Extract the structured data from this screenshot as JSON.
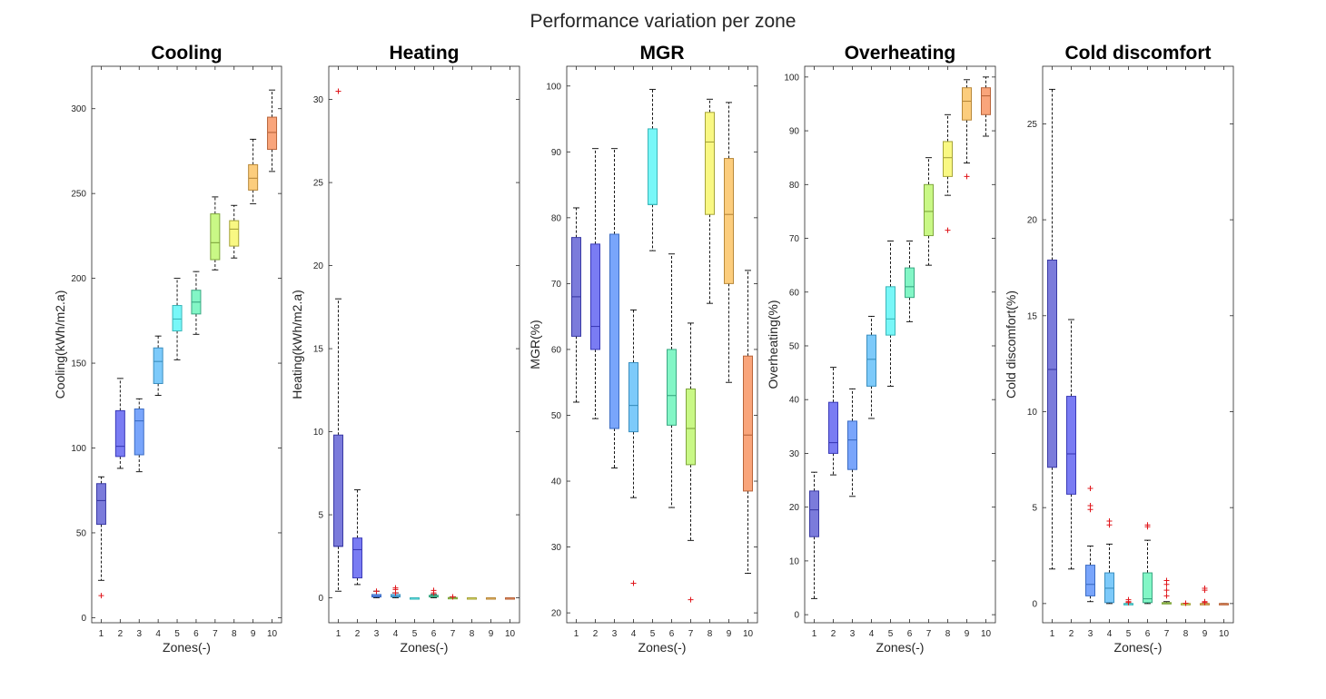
{
  "figure_title": "Performance variation per zone",
  "chart_data": [
    {
      "type": "boxplot",
      "title": "Cooling",
      "xlabel": "Zones(-)",
      "ylabel": "Cooling(kWh/m2.a)",
      "categories": [
        "1",
        "2",
        "3",
        "4",
        "5",
        "6",
        "7",
        "8",
        "9",
        "10"
      ],
      "ylim": [
        -3,
        325
      ],
      "yticks": [
        0,
        50,
        100,
        150,
        200,
        250,
        300
      ],
      "boxes": [
        {
          "zone": "1",
          "lw": 22,
          "q1": 55,
          "med": 69,
          "q3": 79,
          "uw": 83,
          "outliers": [
            13
          ]
        },
        {
          "zone": "2",
          "lw": 88,
          "q1": 95,
          "med": 101,
          "q3": 122,
          "uw": 141,
          "outliers": []
        },
        {
          "zone": "3",
          "lw": 86,
          "q1": 96,
          "med": 116,
          "q3": 123,
          "uw": 129,
          "outliers": []
        },
        {
          "zone": "4",
          "lw": 131,
          "q1": 138,
          "med": 151,
          "q3": 159,
          "uw": 166,
          "outliers": []
        },
        {
          "zone": "5",
          "lw": 152,
          "q1": 169,
          "med": 176,
          "q3": 184,
          "uw": 200,
          "outliers": []
        },
        {
          "zone": "6",
          "lw": 167,
          "q1": 179,
          "med": 186,
          "q3": 193,
          "uw": 204,
          "outliers": []
        },
        {
          "zone": "7",
          "lw": 205,
          "q1": 211,
          "med": 221,
          "q3": 238,
          "uw": 248,
          "outliers": []
        },
        {
          "zone": "8",
          "lw": 212,
          "q1": 219,
          "med": 229,
          "q3": 234,
          "uw": 243,
          "outliers": []
        },
        {
          "zone": "9",
          "lw": 244,
          "q1": 252,
          "med": 259,
          "q3": 267,
          "uw": 282,
          "outliers": []
        },
        {
          "zone": "10",
          "lw": 263,
          "q1": 276,
          "med": 286,
          "q3": 295,
          "uw": 311,
          "outliers": []
        }
      ]
    },
    {
      "type": "boxplot",
      "title": "Heating",
      "xlabel": "Zones(-)",
      "ylabel": "Heating(kWh/m2.a)",
      "categories": [
        "1",
        "2",
        "3",
        "4",
        "5",
        "6",
        "7",
        "8",
        "9",
        "10"
      ],
      "ylim": [
        -1.5,
        32
      ],
      "yticks": [
        0,
        5,
        10,
        15,
        20,
        25,
        30
      ],
      "boxes": [
        {
          "zone": "1",
          "lw": 0.4,
          "q1": 3.1,
          "med": 3.1,
          "q3": 9.8,
          "uw": 18.0,
          "outliers": [
            30.5
          ]
        },
        {
          "zone": "2",
          "lw": 0.8,
          "q1": 1.2,
          "med": 2.9,
          "q3": 3.6,
          "uw": 6.5,
          "outliers": []
        },
        {
          "zone": "3",
          "lw": 0.0,
          "q1": 0.05,
          "med": 0.1,
          "q3": 0.2,
          "uw": 0.4,
          "outliers": [
            0.4
          ]
        },
        {
          "zone": "4",
          "lw": 0.0,
          "q1": 0.05,
          "med": 0.1,
          "q3": 0.2,
          "uw": 0.3,
          "outliers": [
            0.3,
            0.5,
            0.6
          ]
        },
        {
          "zone": "5",
          "lw": 0.0,
          "q1": 0.0,
          "med": 0.0,
          "q3": 0.0,
          "uw": 0.0,
          "outliers": []
        },
        {
          "zone": "6",
          "lw": 0.0,
          "q1": 0.05,
          "med": 0.1,
          "q3": 0.15,
          "uw": 0.2,
          "outliers": [
            0.3,
            0.45
          ]
        },
        {
          "zone": "7",
          "lw": 0.0,
          "q1": 0.0,
          "med": 0.0,
          "q3": 0.02,
          "uw": 0.05,
          "outliers": [
            0.06
          ]
        },
        {
          "zone": "8",
          "lw": 0.0,
          "q1": 0.0,
          "med": 0.0,
          "q3": 0.0,
          "uw": 0.0,
          "outliers": []
        },
        {
          "zone": "9",
          "lw": 0.0,
          "q1": 0.0,
          "med": 0.0,
          "q3": 0.0,
          "uw": 0.0,
          "outliers": []
        },
        {
          "zone": "10",
          "lw": 0.0,
          "q1": 0.0,
          "med": 0.0,
          "q3": 0.0,
          "uw": 0.0,
          "outliers": []
        }
      ]
    },
    {
      "type": "boxplot",
      "title": "MGR",
      "xlabel": "Zones(-)",
      "ylabel": "MGR(%)",
      "categories": [
        "1",
        "2",
        "3",
        "4",
        "5",
        "6",
        "7",
        "8",
        "9",
        "10"
      ],
      "ylim": [
        18.5,
        103
      ],
      "yticks": [
        20,
        30,
        40,
        50,
        60,
        70,
        80,
        90,
        100
      ],
      "boxes": [
        {
          "zone": "1",
          "lw": 52,
          "q1": 62,
          "med": 68,
          "q3": 77,
          "uw": 81.5,
          "outliers": []
        },
        {
          "zone": "2",
          "lw": 49.5,
          "q1": 60,
          "med": 63.5,
          "q3": 76,
          "uw": 90.5,
          "outliers": []
        },
        {
          "zone": "3",
          "lw": 42,
          "q1": 48,
          "med": 48,
          "q3": 77.5,
          "uw": 90.5,
          "outliers": []
        },
        {
          "zone": "4",
          "lw": 37.5,
          "q1": 47.5,
          "med": 51.5,
          "q3": 58,
          "uw": 66,
          "outliers": [
            24.5
          ]
        },
        {
          "zone": "5",
          "lw": 75,
          "q1": 82,
          "med": 82,
          "q3": 93.5,
          "uw": 99.5,
          "outliers": []
        },
        {
          "zone": "6",
          "lw": 36,
          "q1": 48.5,
          "med": 53,
          "q3": 60,
          "uw": 74.5,
          "outliers": []
        },
        {
          "zone": "7",
          "lw": 31,
          "q1": 42.5,
          "med": 48,
          "q3": 54,
          "uw": 64,
          "outliers": [
            22
          ]
        },
        {
          "zone": "8",
          "lw": 67,
          "q1": 80.5,
          "med": 91.5,
          "q3": 96,
          "uw": 98,
          "outliers": []
        },
        {
          "zone": "9",
          "lw": 55,
          "q1": 70,
          "med": 80.5,
          "q3": 89,
          "uw": 97.5,
          "outliers": []
        },
        {
          "zone": "10",
          "lw": 26,
          "q1": 38.5,
          "med": 47,
          "q3": 59,
          "uw": 72,
          "outliers": []
        }
      ]
    },
    {
      "type": "boxplot",
      "title": "Overheating",
      "xlabel": "Zones(-)",
      "ylabel": "Overheating(%)",
      "categories": [
        "1",
        "2",
        "3",
        "4",
        "5",
        "6",
        "7",
        "8",
        "9",
        "10"
      ],
      "ylim": [
        -1.5,
        102
      ],
      "yticks": [
        0,
        10,
        20,
        30,
        40,
        50,
        60,
        70,
        80,
        90,
        100
      ],
      "boxes": [
        {
          "zone": "1",
          "lw": 3,
          "q1": 14.5,
          "med": 19.5,
          "q3": 23,
          "uw": 26.5,
          "outliers": []
        },
        {
          "zone": "2",
          "lw": 26,
          "q1": 30,
          "med": 32,
          "q3": 39.5,
          "uw": 46,
          "outliers": []
        },
        {
          "zone": "3",
          "lw": 22,
          "q1": 27,
          "med": 32.5,
          "q3": 36,
          "uw": 42,
          "outliers": []
        },
        {
          "zone": "4",
          "lw": 36.5,
          "q1": 42.5,
          "med": 47.5,
          "q3": 52,
          "uw": 55.5,
          "outliers": []
        },
        {
          "zone": "5",
          "lw": 42.5,
          "q1": 52,
          "med": 55,
          "q3": 61,
          "uw": 69.5,
          "outliers": []
        },
        {
          "zone": "6",
          "lw": 54.5,
          "q1": 59,
          "med": 61,
          "q3": 64.5,
          "uw": 69.5,
          "outliers": []
        },
        {
          "zone": "7",
          "lw": 65,
          "q1": 70.5,
          "med": 75,
          "q3": 80,
          "uw": 85,
          "outliers": []
        },
        {
          "zone": "8",
          "lw": 78,
          "q1": 81.5,
          "med": 85,
          "q3": 88,
          "uw": 93,
          "outliers": [
            71.5
          ]
        },
        {
          "zone": "9",
          "lw": 84,
          "q1": 92,
          "med": 95.5,
          "q3": 98,
          "uw": 99.5,
          "outliers": [
            81.5
          ]
        },
        {
          "zone": "10",
          "lw": 89,
          "q1": 93,
          "med": 96.5,
          "q3": 98,
          "uw": 100,
          "outliers": []
        }
      ]
    },
    {
      "type": "boxplot",
      "title": "Cold discomfort",
      "xlabel": "Zones(-)",
      "ylabel": "Cold discomfort(%)",
      "categories": [
        "1",
        "2",
        "3",
        "4",
        "5",
        "6",
        "7",
        "8",
        "9",
        "10"
      ],
      "ylim": [
        -1,
        28
      ],
      "yticks": [
        0,
        5,
        10,
        15,
        20,
        25
      ],
      "boxes": [
        {
          "zone": "1",
          "lw": 1.8,
          "q1": 7.1,
          "med": 12.2,
          "q3": 17.9,
          "uw": 26.8,
          "outliers": []
        },
        {
          "zone": "2",
          "lw": 1.8,
          "q1": 5.7,
          "med": 7.8,
          "q3": 10.8,
          "uw": 14.8,
          "outliers": []
        },
        {
          "zone": "3",
          "lw": 0.1,
          "q1": 0.4,
          "med": 1.0,
          "q3": 2.0,
          "uw": 3.0,
          "outliers": [
            4.9,
            5.1,
            6.0
          ]
        },
        {
          "zone": "4",
          "lw": 0.0,
          "q1": 0.05,
          "med": 0.8,
          "q3": 1.6,
          "uw": 3.1,
          "outliers": [
            4.1,
            4.3
          ]
        },
        {
          "zone": "5",
          "lw": 0.0,
          "q1": 0.0,
          "med": 0.0,
          "q3": 0.0,
          "uw": 0.0,
          "outliers": [
            0.05,
            0.1,
            0.2
          ]
        },
        {
          "zone": "6",
          "lw": 0.0,
          "q1": 0.05,
          "med": 0.25,
          "q3": 1.6,
          "uw": 3.3,
          "outliers": [
            4.0,
            4.1
          ]
        },
        {
          "zone": "7",
          "lw": 0.0,
          "q1": 0.0,
          "med": 0.0,
          "q3": 0.05,
          "uw": 0.1,
          "outliers": [
            0.4,
            0.7,
            1.0,
            1.2
          ]
        },
        {
          "zone": "8",
          "lw": 0.0,
          "q1": 0.0,
          "med": 0.0,
          "q3": 0.0,
          "uw": 0.0,
          "outliers": [
            0.02
          ]
        },
        {
          "zone": "9",
          "lw": 0.0,
          "q1": 0.0,
          "med": 0.0,
          "q3": 0.0,
          "uw": 0.0,
          "outliers": [
            0.05,
            0.1,
            0.7,
            0.8
          ]
        },
        {
          "zone": "10",
          "lw": 0.0,
          "q1": 0.0,
          "med": 0.0,
          "q3": 0.0,
          "uw": 0.0,
          "outliers": []
        }
      ]
    }
  ],
  "colors": {
    "zone_fill": [
      "#7b7bdb",
      "#7a7cf3",
      "#79a5fb",
      "#7dcafa",
      "#78f7f8",
      "#83f6c6",
      "#c9f886",
      "#f9f883",
      "#fccd7d",
      "#f9a57b"
    ],
    "zone_stroke": [
      "#3a3aa5",
      "#3a3ab8",
      "#3b6cc4",
      "#3b8fbf",
      "#3ab6b9",
      "#3aa883",
      "#7fa63d",
      "#a6a43a",
      "#b8883a",
      "#b8643a"
    ],
    "outlier": "#e0161b",
    "whisker": "#000000"
  }
}
